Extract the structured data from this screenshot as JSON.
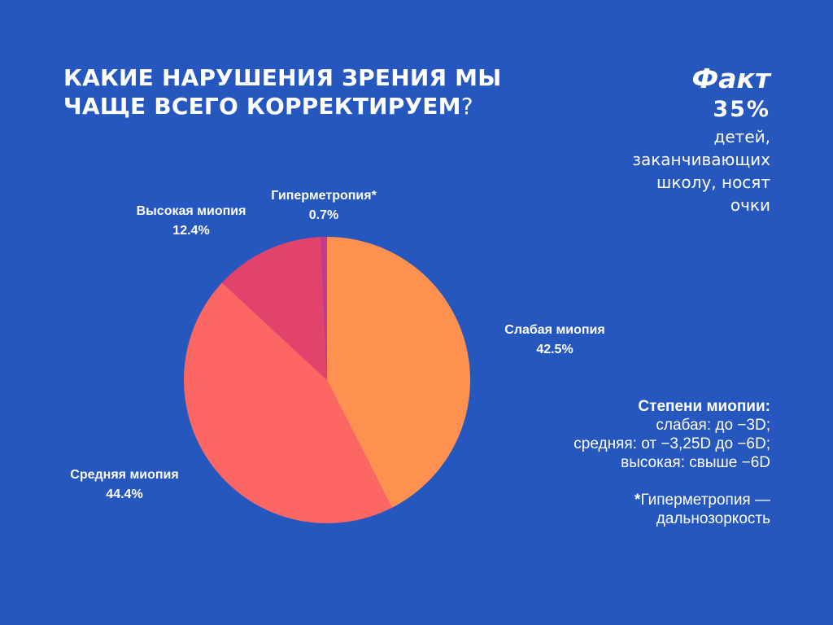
{
  "title": {
    "line1": "КАКИЕ НАРУШЕНИЯ ЗРЕНИЯ МЫ",
    "line2": "ЧАЩЕ ВСЕГО КОРРЕКТИРУЕМ",
    "question": "?"
  },
  "fact": {
    "heading": "Факт",
    "number": "35%",
    "lines": [
      "детей,",
      "заканчивающих",
      "школу, носят",
      "очки"
    ]
  },
  "notes": {
    "heading": "Степени миопии:",
    "items": [
      "слабая: до −3D;",
      "средняя: от −3,25D до −6D;",
      "высокая: свыше −6D"
    ],
    "footnote_star": "*",
    "footnote_line1": "Гиперметропия —",
    "footnote_line2": "дальнозоркость"
  },
  "colors": {
    "background": "#2557bf",
    "slice_weak": "#ff9150",
    "slice_medium": "#fc6763",
    "slice_high": "#e2436d",
    "slice_hyper": "#c13a8c"
  },
  "chart_data": {
    "type": "pie",
    "start": "top",
    "direction": "clockwise",
    "slices": [
      {
        "label": "Слабая миопия",
        "value": 42.5,
        "display": "42.5%",
        "color": "#ff9150"
      },
      {
        "label": "Средняя миопия",
        "value": 44.4,
        "display": "44.4%",
        "color": "#fc6763"
      },
      {
        "label": "Высокая миопия",
        "value": 12.4,
        "display": "12.4%",
        "color": "#e2436d"
      },
      {
        "label": "Гиперметропия*",
        "value": 0.7,
        "display": "0.7%",
        "color": "#c13a8c"
      }
    ]
  }
}
